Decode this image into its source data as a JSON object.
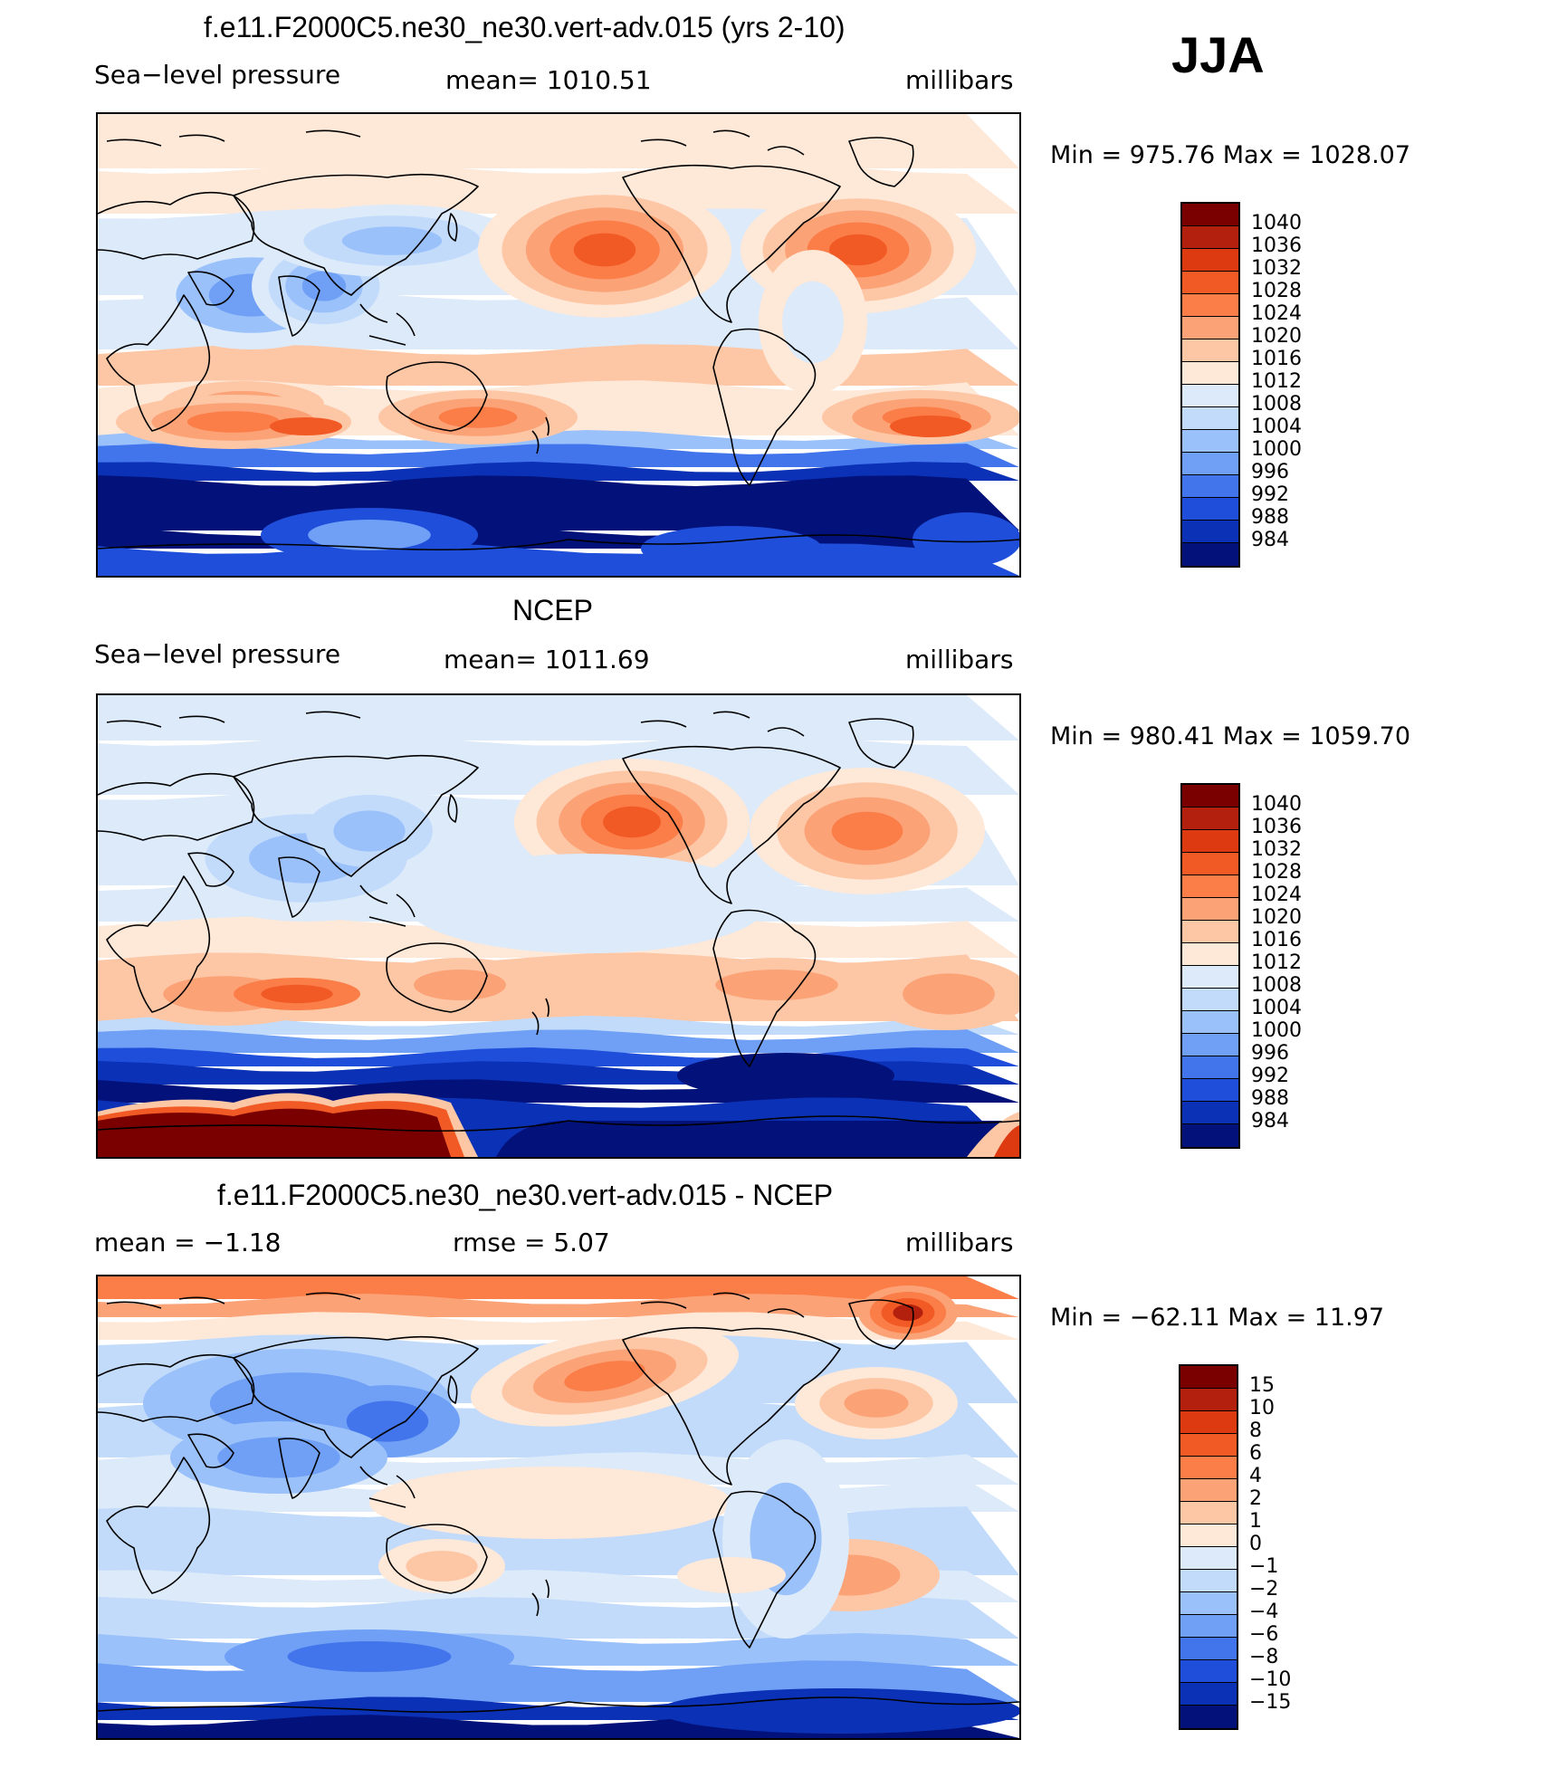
{
  "season": "JJA",
  "units": "millibars",
  "field": "Sea−level pressure",
  "panels": [
    {
      "title": "f.e11.F2000C5.ne30_ne30.vert-adv.015 (yrs 2-10)",
      "left": "Sea−level pressure",
      "center": "mean=  1010.51",
      "right": "millibars",
      "minmax": "Min  =  975.76  Max  =  1028.07"
    },
    {
      "title": "NCEP",
      "left": "Sea−level pressure",
      "center": "mean=  1011.69",
      "right": "millibars",
      "minmax": "Min  =  980.41  Max  =  1059.70"
    },
    {
      "title": "f.e11.F2000C5.ne30_ne30.vert-adv.015 - NCEP",
      "left": "mean  =     −1.18",
      "center": "rmse  =      5.07",
      "right": "millibars",
      "minmax": "Min  =  −62.11  Max  =    11.97"
    }
  ],
  "chart_data": [
    {
      "type": "heatmap",
      "title": "f.e11.F2000C5.ne30_ne30.vert-adv.015 (yrs 2-10)",
      "variable": "Sea−level pressure",
      "units": "millibars",
      "mean": 1010.51,
      "min": 975.76,
      "max": 1028.07,
      "levels": [
        "1040",
        "1036",
        "1032",
        "1028",
        "1024",
        "1020",
        "1016",
        "1012",
        "1008",
        "1004",
        "1000",
        "996",
        "992",
        "988",
        "984"
      ]
    },
    {
      "type": "heatmap",
      "title": "NCEP",
      "variable": "Sea−level pressure",
      "units": "millibars",
      "mean": 1011.69,
      "min": 980.41,
      "max": 1059.7,
      "levels": [
        "1040",
        "1036",
        "1032",
        "1028",
        "1024",
        "1020",
        "1016",
        "1012",
        "1008",
        "1004",
        "1000",
        "996",
        "992",
        "988",
        "984"
      ]
    },
    {
      "type": "heatmap",
      "title": "f.e11.F2000C5.ne30_ne30.vert-adv.015 - NCEP",
      "units": "millibars",
      "mean": -1.18,
      "rmse": 5.07,
      "min": -62.11,
      "max": 11.97,
      "levels": [
        "15",
        "10",
        "8",
        "6",
        "4",
        "2",
        "1",
        "0",
        "−1",
        "−2",
        "−4",
        "−6",
        "−8",
        "−10",
        "−15"
      ]
    }
  ],
  "colors": {
    "palette16": [
      "#7a0000",
      "#b3200e",
      "#dd3a12",
      "#f25a25",
      "#fb7d48",
      "#fca277",
      "#fdc7a6",
      "#fee8d8",
      "#dceafa",
      "#c2dbfb",
      "#9bc1fb",
      "#6fa0f5",
      "#4274eb",
      "#1f4edb",
      "#0b31b6",
      "#03127a"
    ]
  }
}
